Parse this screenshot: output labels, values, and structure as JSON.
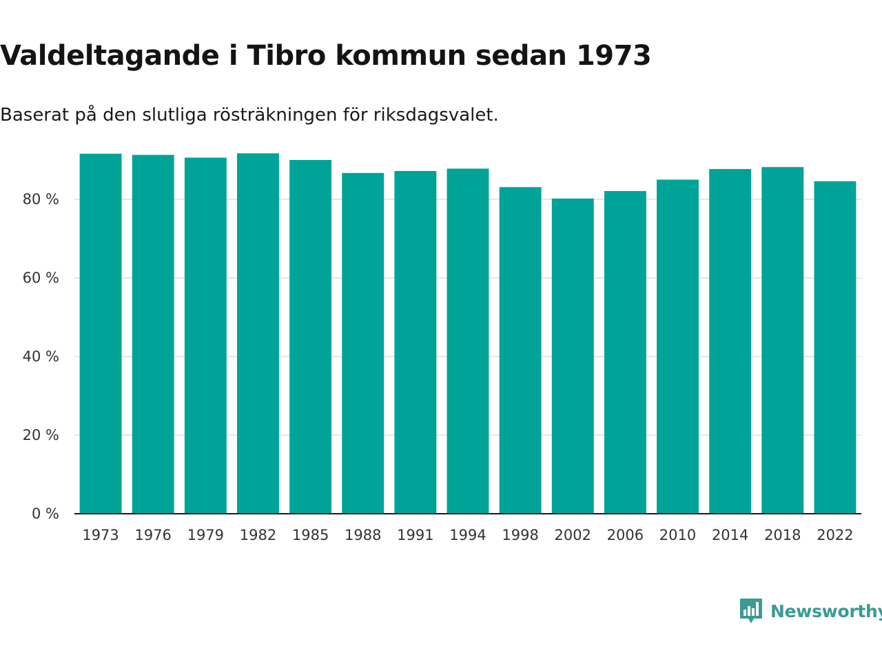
{
  "chart_data": {
    "type": "bar",
    "title": "Valdeltagande i Tibro kommun sedan 1973",
    "subtitle": "Baserat på den slutliga rösträkningen för riksdagsvalet.",
    "categories": [
      "1973",
      "1976",
      "1979",
      "1982",
      "1985",
      "1988",
      "1991",
      "1994",
      "1998",
      "2002",
      "2006",
      "2010",
      "2014",
      "2018",
      "2022"
    ],
    "values": [
      91.6,
      91.3,
      90.6,
      91.7,
      90.0,
      86.7,
      87.2,
      87.8,
      83.1,
      80.2,
      82.1,
      85.0,
      87.7,
      88.2,
      84.6
    ],
    "ylim": [
      0,
      92
    ],
    "yticks": [
      0,
      20,
      40,
      60,
      80
    ],
    "ytick_labels": [
      "0 %",
      "20 %",
      "40 %",
      "60 %",
      "80 %"
    ],
    "xlabel": "",
    "ylabel": "",
    "grid": true,
    "bar_color": "#00a398"
  },
  "brand": {
    "name": "Newsworthy",
    "icon": "bar-chart-speech-bubble-icon",
    "color": "#3a9a94"
  }
}
